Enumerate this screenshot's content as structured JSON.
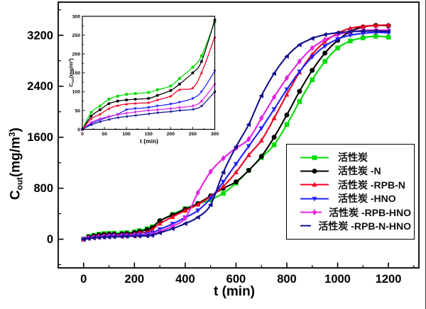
{
  "figure": {
    "background": "#ffffff"
  },
  "chart_data": {
    "type": "line",
    "title": "",
    "xlabel": "t (min)",
    "ylabel": "C_out (mg/m3)",
    "ylabel_parts": {
      "base": "C",
      "sub": "out",
      "rest": "(mg/m",
      "sup": "3",
      "close": ")"
    },
    "main_axes": {
      "xlim": [
        -100,
        1320
      ],
      "ylim": [
        -450,
        3720
      ],
      "xticks": [
        0,
        200,
        400,
        600,
        800,
        1000,
        1200
      ],
      "xminor": [
        100,
        300,
        500,
        700,
        900,
        1100,
        1300
      ],
      "yticks": [
        0,
        800,
        1600,
        2400,
        3200
      ],
      "yminor": [
        -400,
        400,
        1200,
        2000,
        2800,
        3600
      ],
      "grid": false
    },
    "inset_axes": {
      "xlim": [
        0,
        300
      ],
      "ylim": [
        0,
        300
      ],
      "xticks": [
        0,
        50,
        100,
        150,
        200,
        250,
        300
      ],
      "yticks": [
        0,
        50,
        100,
        150,
        200,
        250,
        300
      ],
      "minor_step": 25,
      "xlabel": "t (min)",
      "ylabel": "C_out (mg/m3)",
      "note": "inset magnifies first 300 min of the same series"
    },
    "legend": {
      "position": "lower right"
    },
    "x": [
      0,
      20,
      40,
      60,
      80,
      100,
      120,
      150,
      170,
      200,
      220,
      250,
      270,
      300,
      350,
      400,
      450,
      500,
      550,
      600,
      650,
      700,
      750,
      800,
      850,
      900,
      950,
      1000,
      1050,
      1100,
      1150,
      1200
    ],
    "series": [
      {
        "id": "ac",
        "name": "活性炭",
        "color": "#00DC00",
        "marker": "square",
        "values": [
          0,
          45,
          62,
          80,
          88,
          93,
          95,
          98,
          105,
          115,
          135,
          165,
          195,
          285,
          390,
          480,
          555,
          620,
          720,
          880,
          1080,
          1280,
          1480,
          1800,
          2160,
          2500,
          2790,
          3000,
          3110,
          3160,
          3185,
          3170
        ]
      },
      {
        "id": "ac-n",
        "name": "活性炭 -N",
        "color": "#000000",
        "marker": "circle",
        "values": [
          0,
          35,
          52,
          68,
          75,
          78,
          80,
          82,
          90,
          103,
          120,
          150,
          180,
          290,
          380,
          470,
          560,
          680,
          800,
          900,
          1080,
          1300,
          1600,
          1950,
          2320,
          2650,
          2920,
          3120,
          3260,
          3330,
          3355,
          3350
        ]
      },
      {
        "id": "ac-rpb-n",
        "name": "活性炭 -RPB-N",
        "color": "#ED0022",
        "marker": "triangle-up",
        "values": [
          0,
          28,
          40,
          55,
          63,
          67,
          69,
          71,
          78,
          88,
          105,
          110,
          150,
          245,
          350,
          450,
          545,
          670,
          830,
          1050,
          1320,
          1550,
          1900,
          2270,
          2620,
          2900,
          3100,
          3230,
          3310,
          3340,
          3355,
          3360
        ]
      },
      {
        "id": "ac-hno",
        "name": "活性炭 -HNO",
        "color": "#1F1FFF",
        "marker": "triangle-down",
        "values": [
          0,
          15,
          25,
          33,
          40,
          52,
          55,
          58,
          62,
          67,
          72,
          82,
          100,
          155,
          240,
          340,
          450,
          640,
          900,
          1180,
          1460,
          1740,
          2040,
          2350,
          2630,
          2860,
          3030,
          3140,
          3200,
          3230,
          3245,
          3240
        ]
      },
      {
        "id": "ac-rpb-hno",
        "name": "活性炭 -RPB-HNO",
        "color": "#E321E3",
        "marker": "diamond",
        "values": [
          0,
          18,
          28,
          34,
          39,
          43,
          46,
          50,
          52,
          55,
          58,
          62,
          75,
          120,
          205,
          330,
          730,
          1060,
          1270,
          1430,
          1570,
          1900,
          2230,
          2530,
          2790,
          3000,
          3130,
          3210,
          3255,
          3275,
          3282,
          3280
        ]
      },
      {
        "id": "ac-rpb-n-hno",
        "name": "活性炭 -RPB-N-HNO",
        "color": "#10108E",
        "marker": "triangle-left",
        "values": [
          0,
          12,
          20,
          26,
          31,
          34,
          37,
          41,
          44,
          47,
          50,
          53,
          62,
          100,
          165,
          245,
          345,
          540,
          1050,
          1450,
          1800,
          2250,
          2600,
          2870,
          3050,
          3150,
          3210,
          3240,
          3255,
          3265,
          3268,
          3260
        ]
      }
    ]
  }
}
